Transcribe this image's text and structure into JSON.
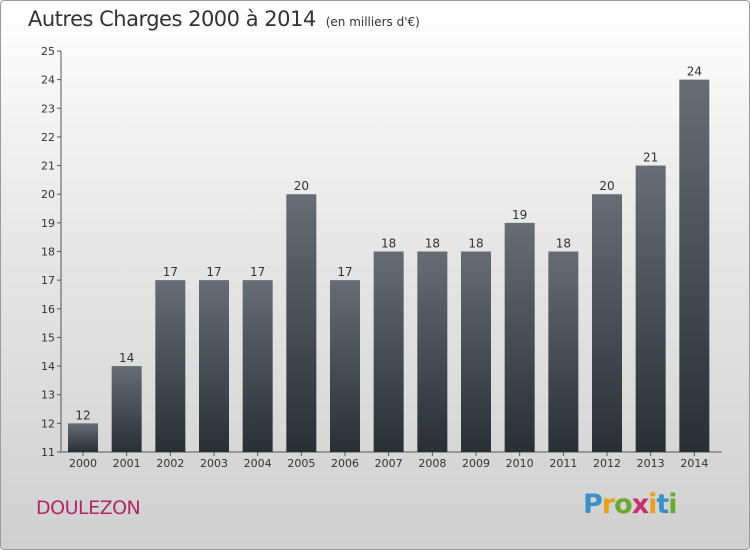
{
  "header": {
    "title": "Autres Charges 2000 à 2014",
    "subtitle": "(en milliers d'€)"
  },
  "footer": {
    "commune": "DOULEZON",
    "logo_text": "Proxiti"
  },
  "colors": {
    "bar_top": "#676d75",
    "bar_bottom": "#2a2f36",
    "commune": "#b0286a"
  },
  "chart_data": {
    "type": "bar",
    "title": "Autres Charges 2000 à 2014",
    "subtitle": "(en milliers d'€)",
    "categories": [
      "2000",
      "2001",
      "2002",
      "2003",
      "2004",
      "2005",
      "2006",
      "2007",
      "2008",
      "2009",
      "2010",
      "2011",
      "2012",
      "2013",
      "2014"
    ],
    "values": [
      12,
      14,
      17,
      17,
      17,
      20,
      17,
      18,
      18,
      18,
      19,
      18,
      20,
      21,
      24
    ],
    "ylim": [
      11,
      25
    ],
    "yticks": [
      11,
      12,
      13,
      14,
      15,
      16,
      17,
      18,
      19,
      20,
      21,
      22,
      23,
      24,
      25
    ],
    "grid": false,
    "data_labels": true
  }
}
